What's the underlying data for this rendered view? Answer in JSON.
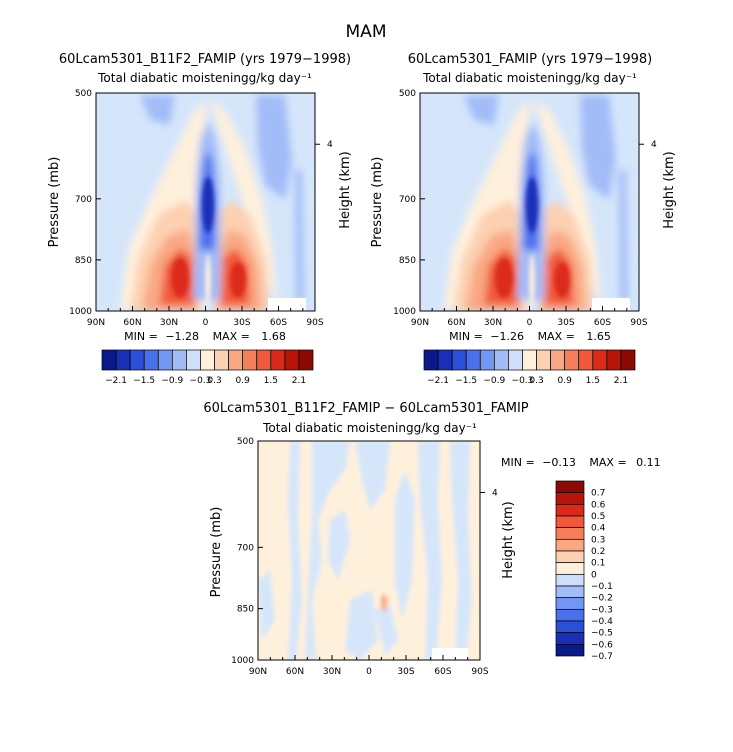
{
  "page": {
    "season": "MAM"
  },
  "chart_data": [
    {
      "type": "heatmap",
      "title": "60Lcam5301_B11F2_FAMIP (yrs 1979−1998)",
      "subtitle": "Total diabatic moistening",
      "units": "g/kg day⁻¹",
      "ylabel": "Pressure (mb)",
      "ylabel_right": "Height (km)",
      "x_ticks": [
        "90N",
        "60N",
        "30N",
        "0",
        "30S",
        "60S",
        "90S"
      ],
      "y_ticks": [
        "500",
        "700",
        "850",
        "1000"
      ],
      "y_tick_values": [
        500,
        700,
        850,
        1000
      ],
      "right_ticks": [
        "4"
      ],
      "min_label": "MIN =",
      "min_value": "−1.28",
      "max_label": "MAX =",
      "max_value": "1.68",
      "colorbar": {
        "orientation": "horizontal",
        "labels": [
          "−2.1",
          "−1.5",
          "−0.9",
          "−0.3",
          "0.3",
          "0.9",
          "1.5",
          "2.1"
        ]
      }
    },
    {
      "type": "heatmap",
      "title": "60Lcam5301_FAMIP (yrs 1979−1998)",
      "subtitle": "Total diabatic moistening",
      "units": "g/kg day⁻¹",
      "ylabel": "Pressure (mb)",
      "ylabel_right": "Height (km)",
      "x_ticks": [
        "90N",
        "60N",
        "30N",
        "0",
        "30S",
        "60S",
        "90S"
      ],
      "y_ticks": [
        "500",
        "700",
        "850",
        "1000"
      ],
      "y_tick_values": [
        500,
        700,
        850,
        1000
      ],
      "right_ticks": [
        "4"
      ],
      "min_label": "MIN =",
      "min_value": "−1.26",
      "max_label": "MAX =",
      "max_value": "1.65",
      "colorbar": {
        "orientation": "horizontal",
        "labels": [
          "−2.1",
          "−1.5",
          "−0.9",
          "−0.3",
          "0.3",
          "0.9",
          "1.5",
          "2.1"
        ]
      }
    },
    {
      "type": "heatmap",
      "title": "60Lcam5301_B11F2_FAMIP − 60Lcam5301_FAMIP",
      "subtitle": "Total diabatic moistening",
      "units": "g/kg day⁻¹",
      "ylabel": "Pressure (mb)",
      "ylabel_right": "Height (km)",
      "x_ticks": [
        "90N",
        "60N",
        "30N",
        "0",
        "30S",
        "60S",
        "90S"
      ],
      "y_ticks": [
        "500",
        "700",
        "850",
        "1000"
      ],
      "y_tick_values": [
        500,
        700,
        850,
        1000
      ],
      "right_ticks": [
        "4"
      ],
      "min_label": "MIN =",
      "min_value": "−0.13",
      "max_label": "MAX =",
      "max_value": "0.11",
      "colorbar": {
        "orientation": "vertical",
        "labels": [
          "0.7",
          "0.6",
          "0.5",
          "0.4",
          "0.3",
          "0.2",
          "0.1",
          "0",
          "−0.1",
          "−0.2",
          "−0.3",
          "−0.4",
          "−0.5",
          "−0.6",
          "−0.7"
        ]
      }
    }
  ],
  "colors": {
    "horizontal_bar": [
      "#0a1a8a",
      "#1a2fb8",
      "#2b4fd8",
      "#4a70ec",
      "#7396f5",
      "#a2bcf8",
      "#cfdffb",
      "#fff0dc",
      "#fcd0b0",
      "#f9a883",
      "#f57f58",
      "#f0583a",
      "#dc2a1a",
      "#b81508",
      "#8c0a04"
    ],
    "vertical_bar": [
      "#8c0a04",
      "#b81508",
      "#dc2a1a",
      "#f0583a",
      "#f57f58",
      "#f9a883",
      "#fcd0b0",
      "#fff0dc",
      "#cfdffb",
      "#a2bcf8",
      "#7396f5",
      "#4a70ec",
      "#2b4fd8",
      "#1a2fb8",
      "#0a1a8a"
    ],
    "field_light_blue": "#d5e6fb",
    "field_blue_mid": "#a2bcf8",
    "field_blue_strong": "#4a70ec",
    "field_blue_deep": "#1a2fb8",
    "field_light_orange": "#fff0dc",
    "field_orange": "#fcd0b0",
    "field_orange_mid": "#f9a883",
    "field_red": "#f0583a",
    "field_red_deep": "#dc2a1a"
  }
}
